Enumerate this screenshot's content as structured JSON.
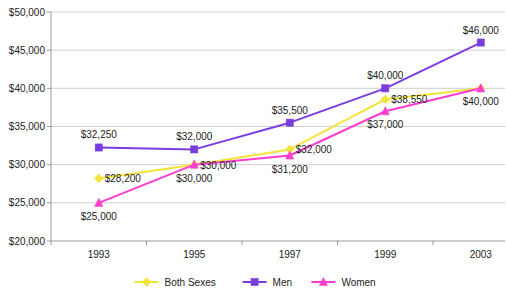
{
  "chart_data": {
    "type": "line",
    "categories": [
      "1993",
      "1995",
      "1997",
      "1999",
      "2003"
    ],
    "series": [
      {
        "name": "Both Sexes",
        "color": "#f2e43a",
        "marker": "diamond",
        "values": [
          28200,
          30000,
          32000,
          38550,
          40000
        ],
        "value_labels": [
          "$28,200",
          "$30,000",
          "$32,000",
          "$38,550",
          null
        ]
      },
      {
        "name": "Men",
        "color": "#7a3ee0",
        "marker": "square",
        "values": [
          32250,
          32000,
          35500,
          40000,
          46000
        ],
        "value_labels": [
          "$32,250",
          "$32,000",
          "$35,500",
          "$40,000",
          "$46,000"
        ]
      },
      {
        "name": "Women",
        "color": "#ff3ccf",
        "marker": "triangle",
        "values": [
          25000,
          30000,
          31200,
          37000,
          40000
        ],
        "value_labels": [
          "$25,000",
          "$30,000",
          "$31,200",
          "$37,000",
          "$40,000"
        ]
      }
    ],
    "ylim": [
      20000,
      50000
    ],
    "yticks": [
      {
        "value": 20000,
        "label": "$20,000"
      },
      {
        "value": 25000,
        "label": "$25,000"
      },
      {
        "value": 30000,
        "label": "$30,000"
      },
      {
        "value": 35000,
        "label": "$35,000"
      },
      {
        "value": 40000,
        "label": "$40,000"
      },
      {
        "value": 45000,
        "label": "$45,000"
      },
      {
        "value": 50000,
        "label": "$50,000"
      }
    ],
    "grid": true,
    "legend": "bottom",
    "data_labels": true
  }
}
